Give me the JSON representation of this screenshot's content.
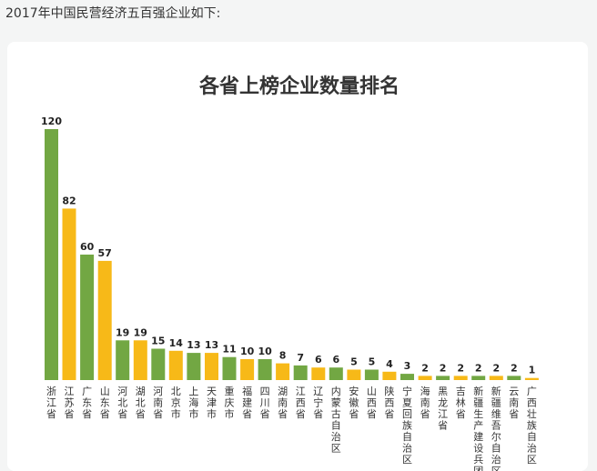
{
  "intro": "2017年中国民营经济五百强企业如下:",
  "colors": {
    "green": "#72a743",
    "yellow": "#f7b918"
  },
  "chart_data": {
    "type": "bar",
    "title": "各省上榜企业数量排名",
    "xlabel": "",
    "ylabel": "",
    "ylim": [
      0,
      120
    ],
    "grid": false,
    "categories": [
      "浙江省",
      "江苏省",
      "广东省",
      "山东省",
      "河北省",
      "湖北省",
      "河南省",
      "北京市",
      "上海市",
      "天津市",
      "重庆市",
      "福建省",
      "四川省",
      "湖南省",
      "江西省",
      "辽宁省",
      "内蒙古自治区",
      "安徽省",
      "山西省",
      "陕西省",
      "宁夏回族自治区",
      "海南省",
      "黑龙江省",
      "吉林省",
      "新疆生产建设兵团",
      "新疆维吾尔自治区",
      "云南省",
      "广西壮族自治区"
    ],
    "values": [
      120,
      82,
      60,
      57,
      19,
      19,
      15,
      14,
      13,
      13,
      11,
      10,
      10,
      8,
      7,
      6,
      6,
      5,
      5,
      4,
      3,
      2,
      2,
      2,
      2,
      2,
      2,
      1
    ],
    "bar_colors": [
      "green",
      "yellow",
      "green",
      "yellow",
      "green",
      "yellow",
      "green",
      "yellow",
      "green",
      "yellow",
      "green",
      "yellow",
      "green",
      "yellow",
      "green",
      "yellow",
      "green",
      "yellow",
      "green",
      "yellow",
      "green",
      "yellow",
      "green",
      "yellow",
      "green",
      "yellow",
      "green",
      "yellow"
    ]
  }
}
